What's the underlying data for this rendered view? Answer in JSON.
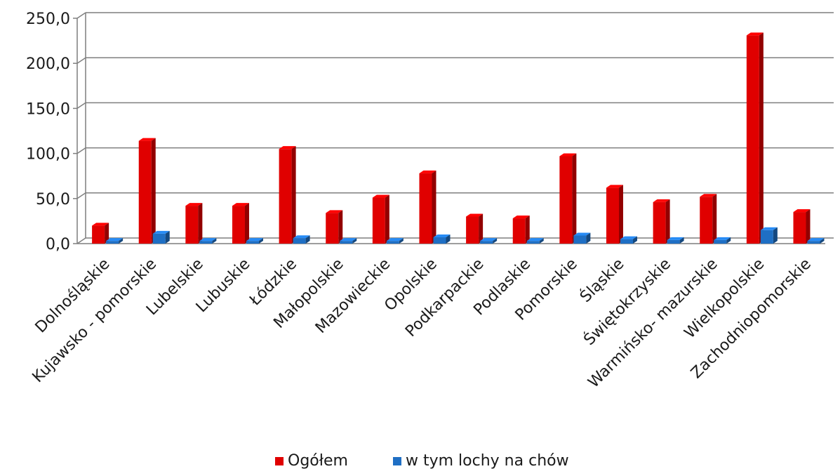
{
  "chart_data": {
    "type": "bar",
    "categories": [
      "Dolnośląskie",
      "Kujawsko - pomorskie",
      "Lubelskie",
      "Lubuskie",
      "Łódzkie",
      "Małopolskie",
      "Mazowieckie",
      "Opolskie",
      "Podkarpackie",
      "Podlaskie",
      "Pomorskie",
      "Śląskie",
      "Świętokrzyskie",
      "Warmińsko- mazurskie",
      "Wielkopolskie",
      "Zachodniopomorskie"
    ],
    "series": [
      {
        "name": "Ogółem",
        "color": "#e00000",
        "values": [
          20,
          114,
          42,
          42,
          105,
          34,
          51,
          78,
          30,
          28,
          97,
          62,
          46,
          52,
          231,
          35
        ]
      },
      {
        "name": "w tym lochy na chów",
        "color": "#1f6fc4",
        "values": [
          3,
          11,
          3,
          3,
          6,
          3,
          3,
          7,
          3,
          3,
          9,
          5,
          4,
          4,
          15,
          3
        ]
      }
    ],
    "yticks": [
      "0,0",
      "50,0",
      "100,0",
      "150,0",
      "200,0",
      "250,0"
    ],
    "ylim": [
      0,
      250
    ],
    "grid": true,
    "legend_position": "bottom",
    "title": "",
    "xlabel": "",
    "ylabel": ""
  }
}
